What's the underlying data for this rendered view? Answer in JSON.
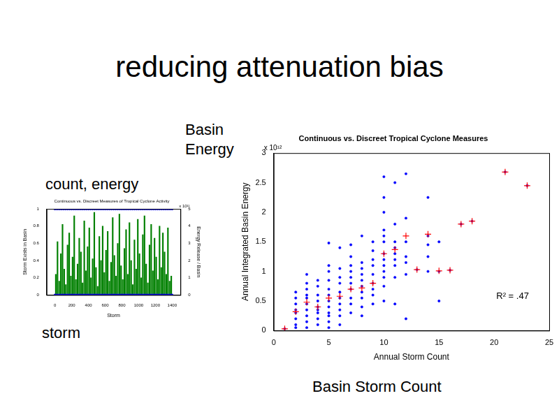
{
  "slide": {
    "title": "reducing attenuation bias",
    "labels": [
      "Basin Energy",
      "count, energy",
      "storm",
      "Basin Storm Count"
    ]
  },
  "chart_data": [
    {
      "type": "bar",
      "title": "Continuous vs. Discreet Measures of Tropical Cyclone Activity",
      "x_label": "Storm",
      "y_label": "Storm Exists in Basin",
      "y2_label": "Energy Release / Basin",
      "y2_multiplier": "x 10¹¹",
      "xlim": [
        0,
        1400
      ],
      "xticks": [
        0,
        200,
        400,
        600,
        800,
        1000,
        1200,
        1400
      ],
      "ylim": [
        0,
        1
      ],
      "yticks": [
        0,
        0.2,
        0.4,
        0.6,
        0.8,
        1
      ],
      "y2lim": [
        0,
        5
      ],
      "y2ticks": [
        0,
        1,
        2,
        3,
        4,
        5
      ],
      "grid": false,
      "series": [
        {
          "type": "scatter",
          "color": "#0000ff",
          "marker": "dot",
          "x": [
            0,
            25,
            50,
            75,
            100,
            125,
            150,
            175,
            200,
            225,
            250,
            275,
            300,
            325,
            350,
            375,
            400,
            425,
            450,
            475,
            500,
            525,
            550,
            575,
            600,
            625,
            650,
            675,
            700,
            725,
            750,
            775,
            800,
            825,
            850,
            875,
            900,
            925,
            950,
            975,
            1000,
            1025,
            1050,
            1075,
            1100,
            1125,
            1150,
            1175,
            1200,
            1225,
            1250,
            1275,
            1300,
            1325,
            1350,
            1375,
            1400
          ],
          "values": [
            1,
            1,
            1,
            1,
            1,
            1,
            1,
            1,
            1,
            1,
            1,
            1,
            1,
            1,
            1,
            1,
            1,
            1,
            1,
            1,
            1,
            1,
            1,
            1,
            1,
            1,
            1,
            1,
            1,
            1,
            1,
            1,
            1,
            1,
            1,
            1,
            1,
            1,
            1,
            1,
            1,
            1,
            1,
            1,
            1,
            1,
            1,
            1,
            1,
            1,
            1,
            1,
            1,
            1,
            1,
            1,
            1
          ]
        },
        {
          "type": "scatter",
          "color": "#0000ff",
          "marker": "dot",
          "x": [
            0,
            25,
            50,
            75,
            100,
            125,
            150,
            175,
            200,
            225,
            250,
            275,
            300,
            325,
            350,
            375,
            400,
            425,
            450,
            475,
            500,
            525,
            550,
            575,
            600,
            625,
            650,
            675,
            700,
            725,
            750,
            775,
            800,
            825,
            850,
            875,
            900,
            925,
            950,
            975,
            1000,
            1025,
            1050,
            1075,
            1100,
            1125,
            1150,
            1175,
            1200,
            1225,
            1250,
            1275,
            1300,
            1325,
            1350,
            1375,
            1400
          ],
          "values": [
            0,
            0,
            0,
            0,
            0,
            0,
            0,
            0,
            0,
            0,
            0,
            0,
            0,
            0,
            0,
            0,
            0,
            0,
            0,
            0,
            0,
            0,
            0,
            0,
            0,
            0,
            0,
            0,
            0,
            0,
            0,
            0,
            0,
            0,
            0,
            0,
            0,
            0,
            0,
            0,
            0,
            0,
            0,
            0,
            0,
            0,
            0,
            0,
            0,
            0,
            0,
            0,
            0,
            0,
            0,
            0,
            0
          ]
        },
        {
          "type": "bar",
          "color": "#008000",
          "axis": "y2",
          "x": [
            10,
            30,
            50,
            70,
            90,
            110,
            130,
            150,
            170,
            190,
            210,
            230,
            250,
            270,
            290,
            310,
            330,
            350,
            370,
            390,
            410,
            430,
            450,
            470,
            490,
            510,
            530,
            550,
            570,
            590,
            610,
            630,
            650,
            670,
            690,
            710,
            730,
            750,
            770,
            790,
            810,
            830,
            850,
            870,
            890,
            910,
            930,
            950,
            970,
            990,
            1010,
            1030,
            1050,
            1070,
            1090,
            1110,
            1130,
            1150,
            1170,
            1190,
            1210,
            1230,
            1250,
            1270,
            1290,
            1310,
            1330,
            1350,
            1370,
            1390
          ],
          "values": [
            1.2,
            3.1,
            0.8,
            2.4,
            4.1,
            1.5,
            0.6,
            2.9,
            3.6,
            1.1,
            2.2,
            4.6,
            0.9,
            1.8,
            3.3,
            2.5,
            0.7,
            4.3,
            1.4,
            2.8,
            3.9,
            1.0,
            2.1,
            4.8,
            1.6,
            0.5,
            3.4,
            2.0,
            4.0,
            1.3,
            2.6,
            3.7,
            0.8,
            1.9,
            4.5,
            2.3,
            1.1,
            3.0,
            4.7,
            1.7,
            0.9,
            2.7,
            3.8,
            1.2,
            4.2,
            2.0,
            0.6,
            3.2,
            1.5,
            4.4,
            2.4,
            1.0,
            3.5,
            4.6,
            1.8,
            0.7,
            2.9,
            4.1,
            1.4,
            3.3,
            2.2,
            0.9,
            4.0,
            1.6,
            3.6,
            2.5,
            1.2,
            3.9,
            0.8,
            1.1
          ]
        }
      ]
    },
    {
      "type": "scatter",
      "title": "Continuous vs. Discreet Tropical Cyclone Measures",
      "x_label": "Annual Storm Count",
      "y_label": "Annual Integrated Basin Energy",
      "y_multiplier": "x 10¹²",
      "annotation": "R² = .47",
      "xlim": [
        0,
        25
      ],
      "xticks": [
        0,
        5,
        10,
        15,
        20,
        25
      ],
      "ylim": [
        0,
        3
      ],
      "yticks": [
        0,
        0.5,
        1,
        1.5,
        2,
        2.5,
        3
      ],
      "grid": false,
      "series": [
        {
          "color": "#0000ff",
          "marker": "dot",
          "x": [
            1,
            2,
            2,
            2,
            2,
            2,
            2,
            2,
            2,
            3,
            3,
            3,
            3,
            3,
            3,
            3,
            3,
            3,
            3,
            4,
            4,
            4,
            4,
            4,
            4,
            4,
            4,
            4,
            5,
            5,
            5,
            5,
            5,
            5,
            5,
            5,
            5,
            5,
            5,
            5,
            6,
            6,
            6,
            6,
            6,
            6,
            6,
            6,
            6,
            6,
            7,
            7,
            7,
            7,
            7,
            7,
            7,
            7,
            7,
            7,
            8,
            8,
            8,
            8,
            8,
            8,
            8,
            8,
            8,
            8,
            9,
            9,
            9,
            9,
            9,
            9,
            9,
            9,
            9,
            10,
            10,
            10,
            10,
            10,
            10,
            10,
            10,
            10,
            10,
            10,
            10,
            10,
            11,
            11,
            11,
            11,
            11,
            11,
            11,
            11,
            11,
            12,
            12,
            12,
            12,
            12,
            12,
            12,
            13,
            14,
            14,
            14,
            14,
            14,
            15,
            15,
            15,
            16,
            17,
            18,
            21,
            23
          ],
          "values": [
            0.03,
            0.05,
            0.1,
            0.2,
            0.3,
            0.35,
            0.45,
            0.55,
            0.65,
            0.05,
            0.15,
            0.25,
            0.35,
            0.45,
            0.55,
            0.6,
            0.7,
            0.8,
            0.95,
            0.1,
            0.2,
            0.3,
            0.35,
            0.4,
            0.5,
            0.6,
            0.75,
            0.85,
            0.05,
            0.15,
            0.25,
            0.3,
            0.4,
            0.5,
            0.6,
            0.7,
            0.85,
            1.0,
            1.1,
            1.48,
            0.1,
            0.25,
            0.35,
            0.45,
            0.55,
            0.65,
            0.8,
            0.9,
            1.05,
            1.4,
            0.3,
            0.45,
            0.55,
            0.7,
            0.8,
            0.9,
            1.0,
            1.1,
            1.25,
            1.45,
            0.25,
            0.4,
            0.55,
            0.65,
            0.75,
            0.85,
            0.95,
            1.05,
            1.15,
            1.6,
            0.45,
            0.6,
            0.7,
            0.8,
            0.95,
            1.1,
            1.2,
            1.35,
            1.5,
            0.5,
            0.75,
            0.9,
            1.0,
            1.1,
            1.2,
            1.3,
            1.5,
            1.6,
            1.7,
            2.0,
            2.25,
            2.6,
            0.45,
            0.9,
            1.1,
            1.2,
            1.3,
            1.4,
            1.5,
            1.8,
            2.5,
            0.2,
            0.95,
            1.15,
            1.25,
            1.5,
            1.9,
            2.65,
            1.03,
            1.0,
            1.25,
            1.45,
            1.6,
            2.25,
            0.5,
            1.0,
            1.5,
            1.02,
            1.8,
            1.85,
            2.68,
            2.45
          ]
        },
        {
          "color": "#ff0000",
          "marker": "plus",
          "x": [
            1,
            2,
            3,
            4,
            5,
            6,
            7,
            8,
            9,
            10,
            11,
            12,
            13,
            14,
            15,
            16,
            17,
            18,
            21,
            23
          ],
          "values": [
            0.03,
            0.32,
            0.48,
            0.4,
            0.55,
            0.58,
            0.7,
            0.72,
            0.8,
            1.3,
            1.37,
            1.6,
            1.03,
            1.63,
            1.01,
            1.02,
            1.8,
            1.85,
            2.68,
            2.45
          ]
        }
      ]
    }
  ]
}
